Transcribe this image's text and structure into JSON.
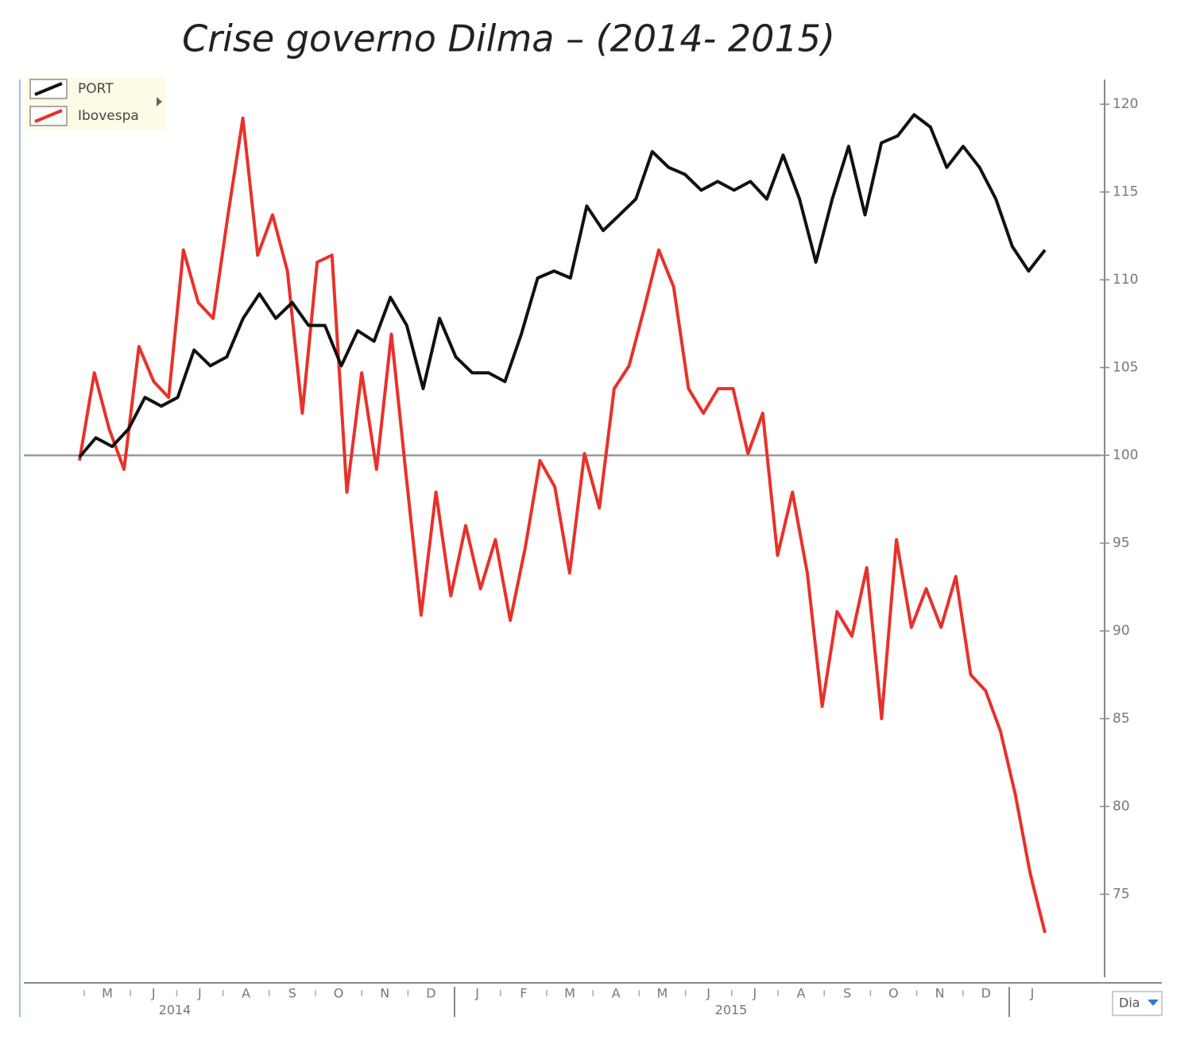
{
  "chart_data": {
    "type": "line",
    "title": "Crise governo Dilma – (2014- 2015)",
    "months": [
      "M",
      "J",
      "J",
      "A",
      "S",
      "O",
      "N",
      "D",
      "J",
      "F",
      "M",
      "A",
      "M",
      "J",
      "J",
      "A",
      "S",
      "O",
      "N",
      "D",
      "J"
    ],
    "years": [
      "2014",
      "2015"
    ],
    "ylim": [
      70,
      121.5
    ],
    "yticks": [
      75,
      80,
      85,
      90,
      95,
      100,
      105,
      110,
      115,
      120
    ],
    "reference_line": 100,
    "legend": "top-left",
    "period_selector": "Dia",
    "series": [
      {
        "name": "PORT",
        "color": "#111111",
        "values": [
          99.9,
          101,
          100.5,
          101.5,
          103.3,
          102.8,
          103.3,
          106,
          105.1,
          105.6,
          107.8,
          109.2,
          107.8,
          108.7,
          107.4,
          107.4,
          105.1,
          107.1,
          106.5,
          109,
          107.4,
          103.8,
          107.8,
          105.6,
          104.7,
          104.7,
          104.2,
          106.9,
          110.1,
          110.5,
          110.1,
          114.2,
          112.8,
          113.7,
          114.6,
          117.3,
          116.4,
          116,
          115.1,
          115.6,
          115.1,
          115.6,
          114.6,
          117.1,
          114.6,
          111,
          114.6,
          117.6,
          113.7,
          117.8,
          118.2,
          119.4,
          118.7,
          116.4,
          117.6,
          116.4,
          114.6,
          111.9,
          110.5,
          111.7
        ]
      },
      {
        "name": "Ibovespa",
        "color": "#e8312a",
        "values": [
          99.7,
          104.7,
          101.5,
          99.2,
          106.2,
          104.2,
          103.3,
          111.7,
          108.7,
          107.8,
          113.7,
          119.2,
          111.4,
          113.7,
          110.5,
          102.4,
          111,
          111.4,
          97.9,
          104.7,
          99.2,
          106.9,
          98.8,
          90.9,
          97.9,
          92,
          96,
          92.4,
          95.2,
          90.6,
          94.7,
          99.7,
          98.2,
          93.3,
          100.1,
          97,
          103.8,
          105.1,
          108.3,
          111.7,
          109.6,
          103.8,
          102.4,
          103.8,
          103.8,
          100.1,
          102.4,
          94.3,
          97.9,
          93.3,
          85.7,
          91.1,
          89.7,
          93.6,
          85,
          95.2,
          90.2,
          92.4,
          90.2,
          93.1,
          87.5,
          86.6,
          84.3,
          80.7,
          76.2,
          72.8
        ]
      }
    ]
  }
}
